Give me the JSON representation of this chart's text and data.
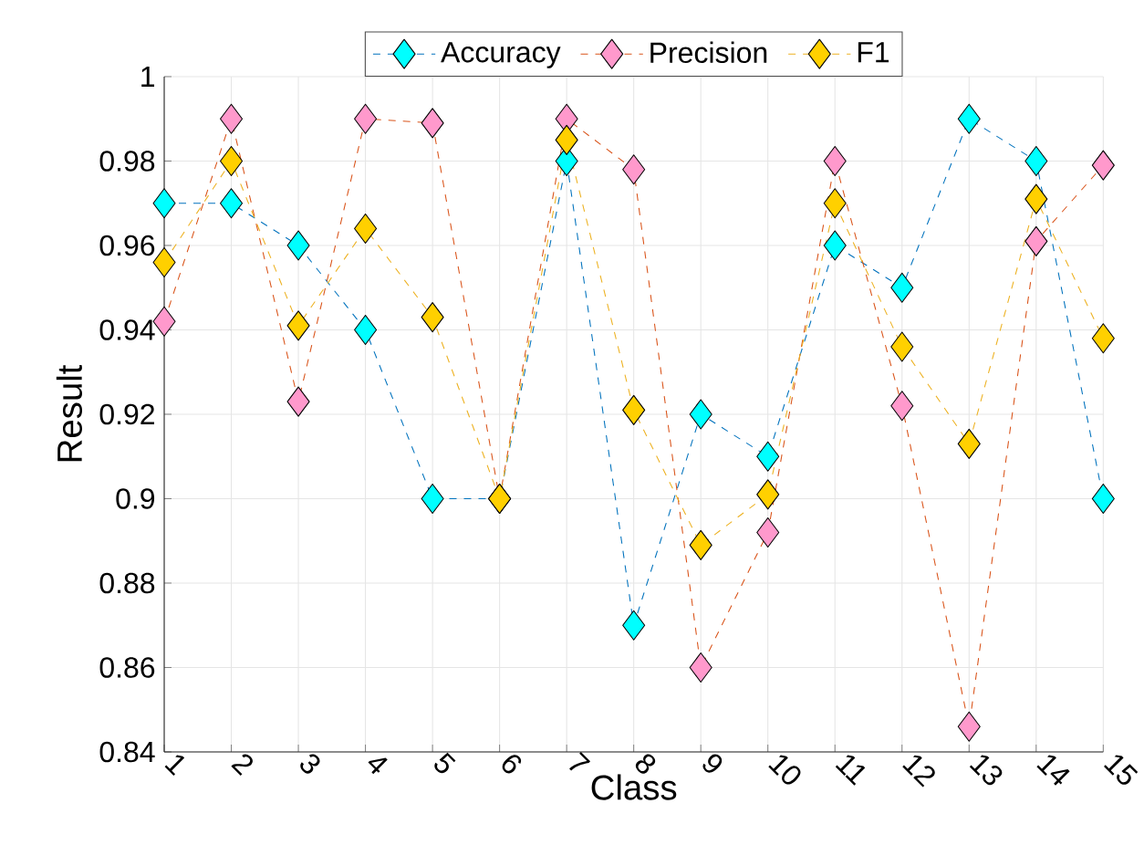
{
  "chart_data": {
    "type": "line",
    "xlabel": "Class",
    "ylabel": "Result",
    "categories": [
      "1",
      "2",
      "3",
      "4",
      "5",
      "6",
      "7",
      "8",
      "9",
      "10",
      "11",
      "12",
      "13",
      "14",
      "15"
    ],
    "series": [
      {
        "name": "Accuracy",
        "color": "#00ffff",
        "values": [
          0.97,
          0.97,
          0.96,
          0.94,
          0.9,
          0.9,
          0.98,
          0.87,
          0.92,
          0.91,
          0.96,
          0.95,
          0.99,
          0.98,
          0.9
        ]
      },
      {
        "name": "Precision",
        "color": "#ff99cc",
        "values": [
          0.942,
          0.99,
          0.923,
          0.99,
          0.989,
          0.9,
          0.99,
          0.978,
          0.86,
          0.892,
          0.98,
          0.922,
          0.846,
          0.961,
          0.979
        ]
      },
      {
        "name": "F1",
        "color": "#ffd000",
        "values": [
          0.956,
          0.98,
          0.941,
          0.964,
          0.943,
          0.9,
          0.985,
          0.921,
          0.889,
          0.901,
          0.97,
          0.936,
          0.913,
          0.971,
          0.938
        ]
      }
    ],
    "ylim": [
      0.84,
      1
    ],
    "yticks": [
      0.84,
      0.86,
      0.88,
      0.9,
      0.92,
      0.94,
      0.96,
      0.98,
      1
    ],
    "grid": true,
    "legend": "top",
    "marker": "diamond",
    "line_style": "dashed"
  }
}
